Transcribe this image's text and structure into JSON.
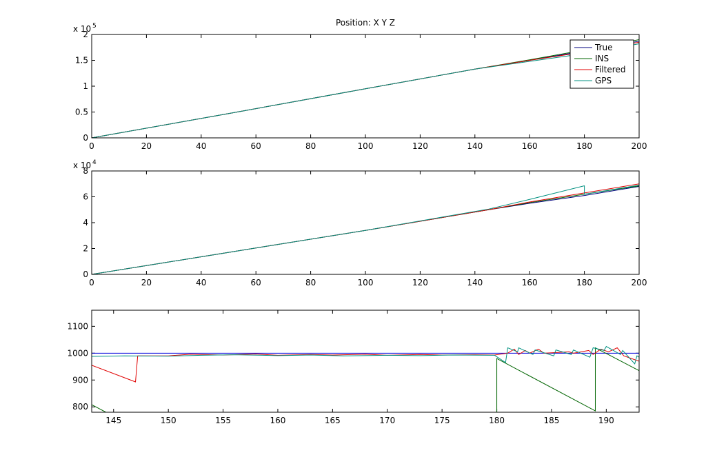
{
  "chart_data": [
    {
      "type": "line",
      "title": "Position: X Y Z",
      "xlim": [
        0,
        200
      ],
      "xticks": [
        0,
        20,
        40,
        60,
        80,
        100,
        120,
        140,
        160,
        180,
        200
      ],
      "ylim": [
        0,
        2
      ],
      "yticks": [
        0,
        0.5,
        1,
        1.5,
        2
      ],
      "y_scale_base": "x 10",
      "y_scale_exponent": "5",
      "legend": "top-right",
      "x": [
        0,
        50,
        100,
        140,
        160,
        180,
        200
      ],
      "series": [
        {
          "name": "True",
          "color": "#00007f",
          "values": [
            0,
            0.47,
            0.95,
            1.33,
            1.5,
            1.68,
            1.87
          ]
        },
        {
          "name": "INS",
          "color": "#006400",
          "values": [
            0,
            0.47,
            0.95,
            1.33,
            1.51,
            1.7,
            1.9
          ]
        },
        {
          "name": "Filtered",
          "color": "#e00000",
          "values": [
            0,
            0.47,
            0.95,
            1.33,
            1.5,
            1.66,
            1.85
          ]
        },
        {
          "name": "GPS",
          "color": "#009080",
          "values": [
            0,
            0.47,
            0.95,
            1.33,
            1.48,
            1.63,
            1.82
          ]
        }
      ]
    },
    {
      "type": "line",
      "xlim": [
        0,
        200
      ],
      "xticks": [
        0,
        20,
        40,
        60,
        80,
        100,
        120,
        140,
        160,
        180,
        200
      ],
      "ylim": [
        0,
        8
      ],
      "yticks": [
        0,
        2,
        4,
        6,
        8
      ],
      "y_scale_base": "x 10",
      "y_scale_exponent": "4",
      "x": [
        0,
        50,
        100,
        145,
        160,
        180,
        180,
        200
      ],
      "series": [
        {
          "color": "#00007f",
          "values": [
            0,
            1.7,
            3.4,
            5.0,
            5.5,
            6.1,
            6.1,
            6.8
          ]
        },
        {
          "color": "#006400",
          "values": [
            0,
            1.7,
            3.4,
            5.0,
            5.55,
            6.2,
            6.2,
            6.85
          ]
        },
        {
          "color": "#e00000",
          "values": [
            0,
            1.7,
            3.4,
            5.0,
            5.6,
            6.3,
            6.3,
            7.0
          ]
        },
        {
          "color": "#009080",
          "values": [
            0,
            1.7,
            3.4,
            5.05,
            5.8,
            6.85,
            6.2,
            6.9
          ]
        }
      ]
    },
    {
      "type": "line",
      "xlim": [
        143,
        193
      ],
      "xticks": [
        145,
        150,
        155,
        160,
        165,
        170,
        175,
        180,
        185,
        190
      ],
      "ylim": [
        780,
        1160
      ],
      "yticks": [
        800,
        900,
        1000,
        1100
      ],
      "series": [
        {
          "color": "#0000dd",
          "x": [
            143,
            193
          ],
          "values": [
            1000,
            1000
          ]
        },
        {
          "color": "#006400",
          "x": [
            143,
            144.3,
            180,
            180,
            180,
            189,
            189,
            193
          ],
          "values": [
            808,
            780,
            null,
            780,
            980,
            785,
            1020,
            935
          ]
        },
        {
          "color": "#e00000",
          "x": [
            143,
            147,
            147.2,
            150,
            152,
            155,
            158,
            160,
            163,
            165,
            168,
            170,
            173,
            175,
            178,
            179.8,
            181,
            181.6,
            182,
            182.6,
            183,
            183.8,
            184.3,
            186.6,
            187,
            188.4,
            188.8,
            189.5,
            190.2,
            191,
            191.6,
            193
          ],
          "values": [
            955,
            893,
            990,
            990,
            996,
            993,
            997,
            992,
            995,
            993,
            996,
            992,
            995,
            993,
            994,
            993,
            1000,
            1015,
            995,
            1010,
            1000,
            1015,
            1000,
            1005,
            1000,
            1010,
            995,
            1015,
            1005,
            1020,
            990,
            970
          ]
        },
        {
          "color": "#009080",
          "x": [
            143,
            146,
            150,
            153,
            156,
            160,
            163,
            166,
            170,
            173,
            176,
            179.8,
            180.8,
            181,
            181.9,
            182,
            183.3,
            183.5,
            185.2,
            185.4,
            186.8,
            187,
            188.5,
            188.8,
            189.8,
            190,
            191.3,
            191.5,
            192.6,
            192.8,
            193
          ],
          "values": [
            988,
            990,
            989,
            992,
            994,
            991,
            993,
            990,
            992,
            991,
            993,
            992,
            965,
            1020,
            1005,
            1020,
            995,
            1012,
            990,
            1012,
            995,
            1012,
            985,
            1020,
            1010,
            1025,
            995,
            1010,
            960,
            990,
            985
          ]
        }
      ]
    }
  ]
}
